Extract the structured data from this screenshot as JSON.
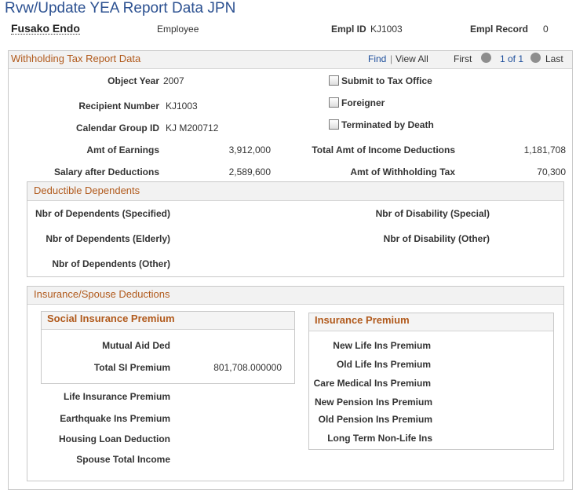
{
  "page_title": "Rvw/Update YEA Report Data JPN",
  "header": {
    "name": "Fusako Endo",
    "role": "Employee",
    "empl_id_label": "Empl ID",
    "empl_id": "KJ1003",
    "empl_record_label": "Empl Record",
    "empl_record": "0"
  },
  "withholding": {
    "title": "Withholding Tax Report Data",
    "nav": {
      "find": "Find",
      "separator": "|",
      "view_all": "View All",
      "first": "First",
      "count": "1 of 1",
      "last": "Last"
    },
    "object_year": {
      "label": "Object Year",
      "value": "2007"
    },
    "recipient_number": {
      "label": "Recipient Number",
      "value": "KJ1003"
    },
    "calendar_group": {
      "label": "Calendar Group ID",
      "value": "KJ M200712"
    },
    "checkboxes": [
      "Submit to Tax Office",
      "Foreigner",
      "Terminated by Death"
    ],
    "amt_earnings": {
      "label": "Amt of Earnings",
      "value": "3,912,000"
    },
    "total_income_deductions": {
      "label": "Total Amt of Income Deductions",
      "value": "1,181,708"
    },
    "salary_after_deductions": {
      "label": "Salary after Deductions",
      "value": "2,589,600"
    },
    "withholding_tax": {
      "label": "Amt of Withholding Tax",
      "value": "70,300"
    }
  },
  "dependents": {
    "title": "Deductible Dependents",
    "left": [
      "Nbr of Dependents (Specified)",
      "Nbr of Dependents (Elderly)",
      "Nbr of Dependents (Other)"
    ],
    "right": [
      "Nbr of Disability (Special)",
      "Nbr of Disability (Other)"
    ]
  },
  "insurance": {
    "title": "Insurance/Spouse Deductions",
    "social": {
      "title": "Social Insurance Premium",
      "mutual_aid_label": "Mutual Aid Ded",
      "total_label": "Total SI Premium",
      "total_value": "801,708.000000"
    },
    "left": [
      "Life Insurance Premium",
      "Earthquake Ins Premium",
      "Housing Loan Deduction",
      "Spouse Total Income"
    ],
    "premium": {
      "title": "Insurance Premium",
      "labels": [
        "New Life Ins Premium",
        "Old Life Ins Premium",
        "Care Medical Ins Premium",
        "New Pension Ins Premium",
        "Old Pension Ins Premium",
        "Long Term Non-Life Ins"
      ]
    }
  }
}
